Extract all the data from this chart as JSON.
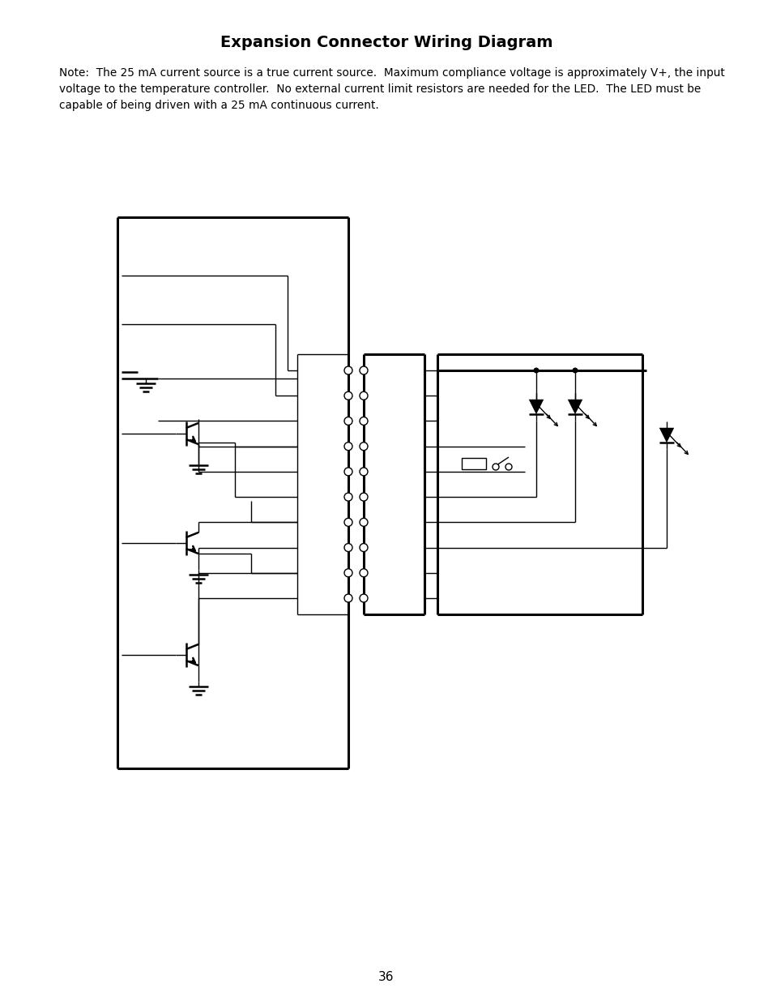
{
  "title": "Expansion Connector Wiring Diagram",
  "note_line1": "Note:  The 25 mA current source is a true current source.  Maximum compliance voltage is approximately V+, the input",
  "note_line2": "voltage to the temperature controller.  No external current limit resistors are needed for the LED.  The LED must be",
  "note_line3": "capable of being driven with a 25 mA continuous current.",
  "page_number": "36",
  "bg_color": "#ffffff",
  "lc": "#000000",
  "lw_thin": 1.0,
  "lw_med": 1.8,
  "lw_thick": 2.2
}
